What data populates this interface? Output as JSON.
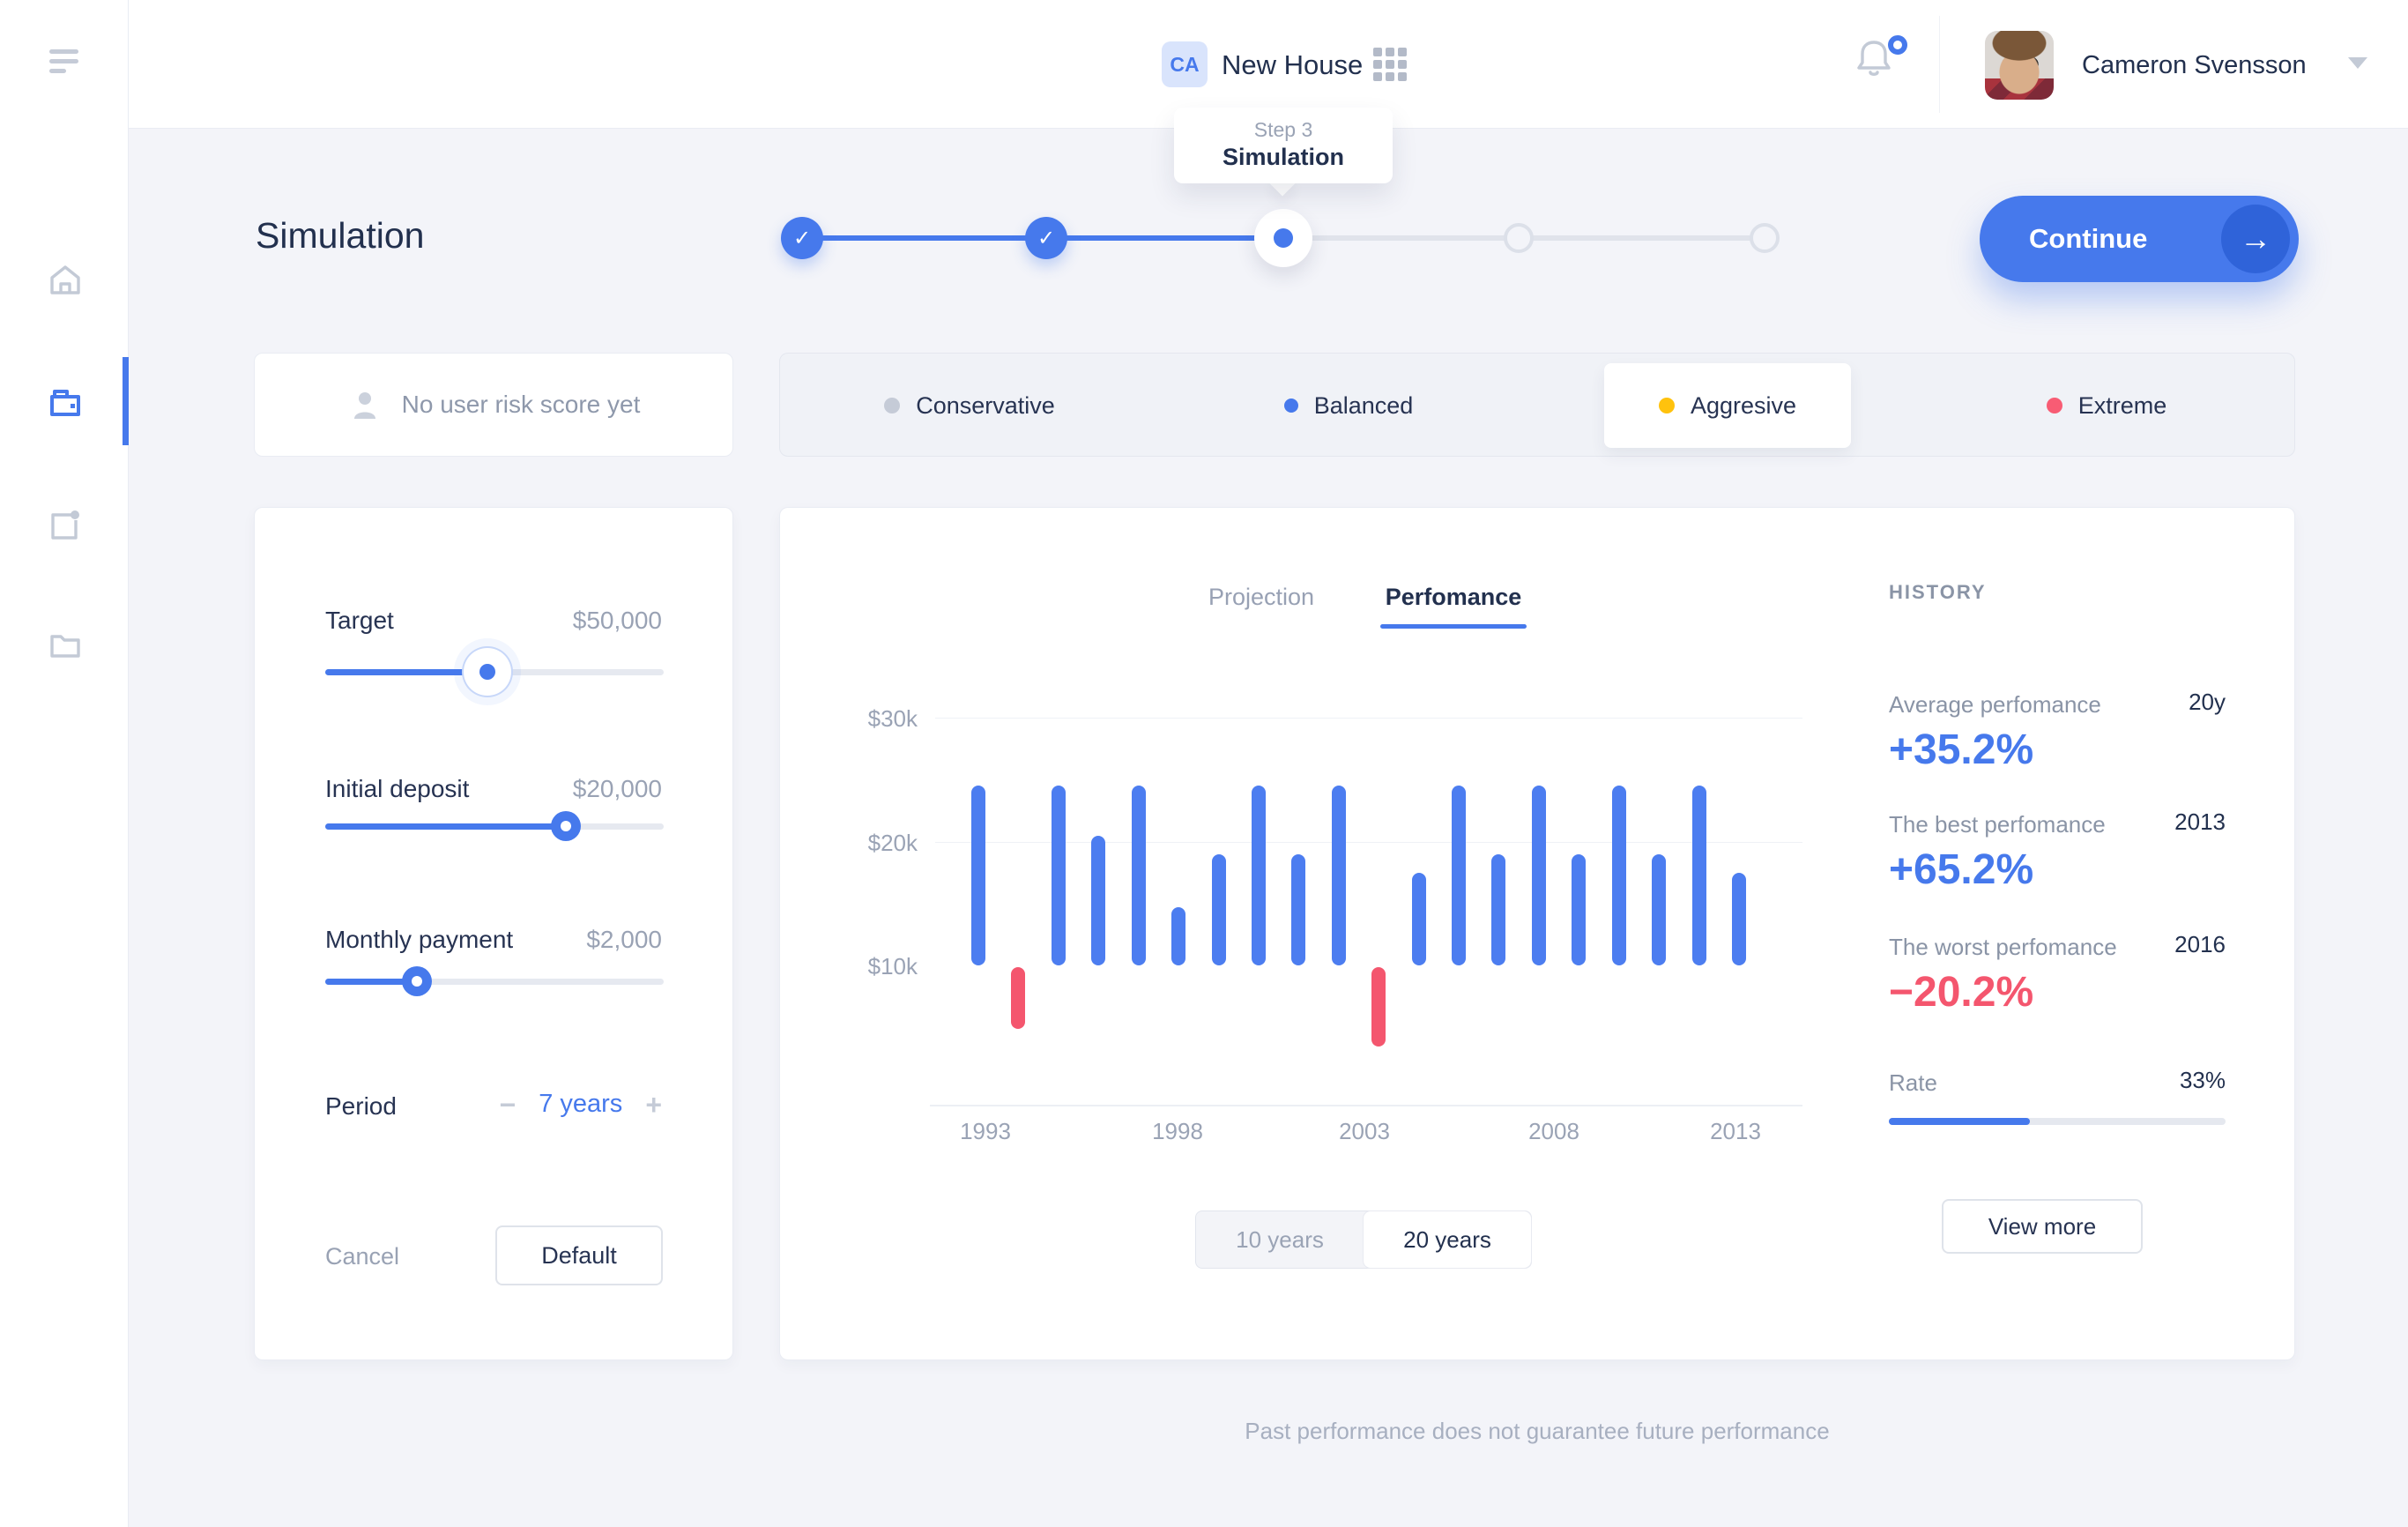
{
  "header": {
    "project_initials": "CA",
    "project_name": "New House",
    "user_name": "Cameron Svensson"
  },
  "sidebar": {
    "items": [
      {
        "icon": "home-icon",
        "active": false
      },
      {
        "icon": "wallet-icon",
        "active": true
      },
      {
        "icon": "project-notification-icon",
        "active": false
      },
      {
        "icon": "folder-icon",
        "active": false
      }
    ]
  },
  "page": {
    "title": "Simulation"
  },
  "stepper": {
    "tooltip": {
      "step_label": "Step 3",
      "step_name": "Simulation"
    },
    "steps": [
      {
        "state": "done"
      },
      {
        "state": "done"
      },
      {
        "state": "current"
      },
      {
        "state": "todo"
      },
      {
        "state": "todo"
      }
    ]
  },
  "continue_button": {
    "label": "Continue",
    "icon": "arrow-right-icon"
  },
  "risk_score_card": {
    "icon": "user-icon",
    "text": "No user risk score yet"
  },
  "risk_levels": {
    "options": [
      {
        "label": "Conservative",
        "dot_color": "#C5CBD7",
        "selected": false,
        "highlighted": false
      },
      {
        "label": "Balanced",
        "dot_color": "#4679EC",
        "selected": true,
        "highlighted": false
      },
      {
        "label": "Aggresive",
        "dot_color": "#FFC20D",
        "selected": false,
        "highlighted": true
      },
      {
        "label": "Extreme",
        "dot_color": "#F85C74",
        "selected": false,
        "highlighted": false
      }
    ]
  },
  "parameters": {
    "target": {
      "label": "Target",
      "value": "$50,000",
      "fill_pct": 48
    },
    "initial_deposit": {
      "label": "Initial deposit",
      "value": "$20,000",
      "fill_pct": 71
    },
    "monthly_payment": {
      "label": "Monthly payment",
      "value": "$2,000",
      "fill_pct": 27
    },
    "period": {
      "label": "Period",
      "minus": "−",
      "value": "7 years",
      "plus": "+"
    },
    "cancel_label": "Cancel",
    "default_label": "Default"
  },
  "chart": {
    "tabs": [
      {
        "label": "Projection",
        "active": false
      },
      {
        "label": "Perfomance",
        "active": true
      }
    ],
    "range_toggle": [
      {
        "label": "10 years",
        "active": false
      },
      {
        "label": "20 years",
        "active": true
      }
    ]
  },
  "chart_data": {
    "type": "bar",
    "title": "Perfomance",
    "xlabel": "",
    "ylabel": "",
    "grid": true,
    "legend": false,
    "y_ticks": [
      "$30k",
      "$20k",
      "$10k"
    ],
    "y_tick_values_k": [
      30,
      20,
      10
    ],
    "x_ticks": [
      "1993",
      "1998",
      "2003",
      "2008",
      "2013"
    ],
    "baseline_k": 10,
    "ylim_k": [
      3,
      31
    ],
    "bars": [
      {
        "year": 1993,
        "top_k": 24.6,
        "kind": "positive"
      },
      {
        "year": 1994,
        "top_k": 5.0,
        "kind": "negative"
      },
      {
        "year": 1995,
        "top_k": 24.6,
        "kind": "positive"
      },
      {
        "year": 1996,
        "top_k": 20.5,
        "kind": "positive"
      },
      {
        "year": 1997,
        "top_k": 24.6,
        "kind": "positive"
      },
      {
        "year": 1998,
        "top_k": 14.7,
        "kind": "positive"
      },
      {
        "year": 1999,
        "top_k": 19.0,
        "kind": "positive"
      },
      {
        "year": 2000,
        "top_k": 24.6,
        "kind": "positive"
      },
      {
        "year": 2001,
        "top_k": 19.0,
        "kind": "positive"
      },
      {
        "year": 2002,
        "top_k": 24.6,
        "kind": "positive"
      },
      {
        "year": 2003,
        "top_k": 3.6,
        "kind": "negative"
      },
      {
        "year": 2004,
        "top_k": 17.5,
        "kind": "positive"
      },
      {
        "year": 2005,
        "top_k": 24.6,
        "kind": "positive"
      },
      {
        "year": 2006,
        "top_k": 19.0,
        "kind": "positive"
      },
      {
        "year": 2007,
        "top_k": 24.6,
        "kind": "positive"
      },
      {
        "year": 2008,
        "top_k": 19.0,
        "kind": "positive"
      },
      {
        "year": 2009,
        "top_k": 24.6,
        "kind": "positive"
      },
      {
        "year": 2010,
        "top_k": 19.0,
        "kind": "positive"
      },
      {
        "year": 2011,
        "top_k": 24.6,
        "kind": "positive"
      },
      {
        "year": 2012,
        "top_k": 17.5,
        "kind": "positive"
      }
    ],
    "positive_color": "#4C7DF0",
    "negative_color": "#F4566E"
  },
  "history": {
    "title": "HISTORY",
    "items": [
      {
        "label": "Average perfomance",
        "tag": "20y",
        "value": "+35.2%",
        "color": "#4679EC"
      },
      {
        "label": "The best perfomance",
        "tag": "2013",
        "value": "+65.2%",
        "color": "#4679EC"
      },
      {
        "label": "The worst perfomance",
        "tag": "2016",
        "value": "−20.2%",
        "color": "#F4566E"
      }
    ],
    "rate": {
      "label": "Rate",
      "value": "33%",
      "fill_pct": 42
    },
    "view_more_label": "View more"
  },
  "footer": {
    "disclaimer": "Past performance does not guarantee future performance"
  },
  "colors": {
    "accent": "#4679EC",
    "red": "#F4566E",
    "yellow": "#FFC20D",
    "navy": "#22304E",
    "gray": "#8A94A6",
    "background": "#F3F4F9"
  }
}
